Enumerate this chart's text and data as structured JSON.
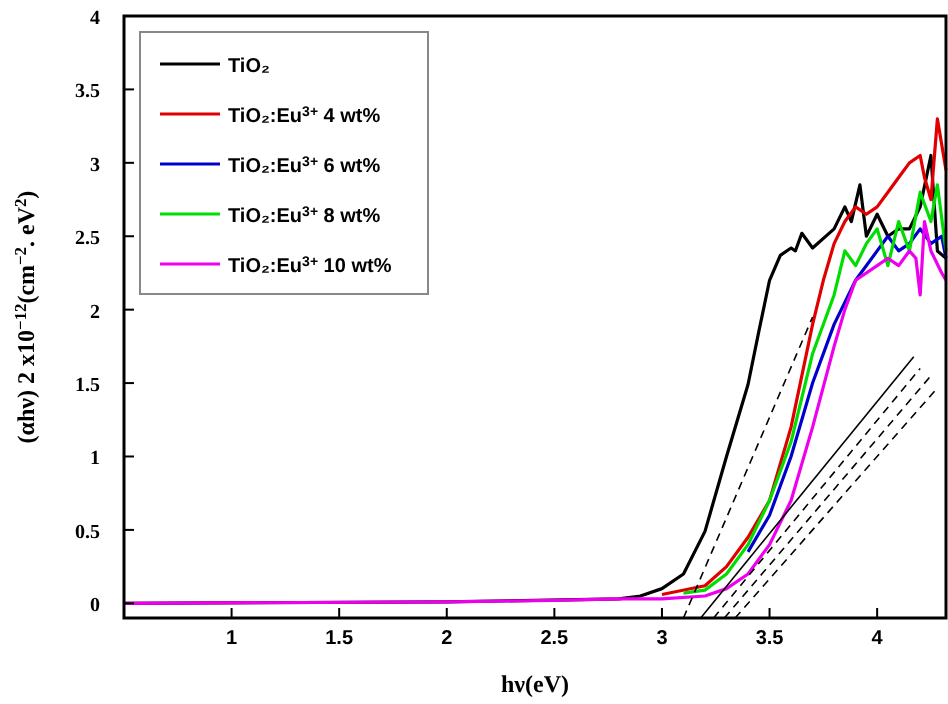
{
  "chart_data": {
    "type": "line",
    "xlabel": "hν(eV)",
    "ylabel": "(αhν) 2 x10$^{−12}$(cm$^{−2}$. eV$^{2}$)",
    "xlim": [
      0.5,
      4.32
    ],
    "ylim": [
      -0.1,
      4
    ],
    "xticks": [
      1,
      1.5,
      2,
      2.5,
      3,
      3.5,
      4
    ],
    "yticks": [
      0,
      0.5,
      1,
      1.5,
      2,
      2.5,
      3,
      3.5,
      4
    ],
    "legend": "top left",
    "grid": false,
    "line_style": "solid",
    "marker": "none",
    "series": [
      {
        "name": "TiO₂",
        "color": "#000000",
        "x": [
          0.5,
          2,
          2.8,
          2.9,
          3.0,
          3.1,
          3.2,
          3.3,
          3.4,
          3.45,
          3.5,
          3.55,
          3.6,
          3.62,
          3.65,
          3.7,
          3.8,
          3.85,
          3.88,
          3.92,
          3.95,
          4.0,
          4.05,
          4.1,
          4.15,
          4.2,
          4.25,
          4.28,
          4.32
        ],
        "values": [
          0,
          0.01,
          0.03,
          0.05,
          0.1,
          0.2,
          0.49,
          1.0,
          1.49,
          1.85,
          2.2,
          2.37,
          2.42,
          2.4,
          2.52,
          2.42,
          2.55,
          2.7,
          2.6,
          2.85,
          2.5,
          2.65,
          2.5,
          2.55,
          2.55,
          2.7,
          3.05,
          2.4,
          2.35
        ]
      },
      {
        "name": "TiO₂:Eu$^{3+}$ 4 wt%",
        "color": "#e00000",
        "x": [
          3.0,
          3.2,
          3.3,
          3.4,
          3.5,
          3.6,
          3.7,
          3.75,
          3.8,
          3.85,
          3.9,
          3.95,
          4.0,
          4.05,
          4.1,
          4.15,
          4.2,
          4.22,
          4.25,
          4.28,
          4.32
        ],
        "values": [
          0.06,
          0.12,
          0.25,
          0.45,
          0.7,
          1.2,
          1.9,
          2.2,
          2.45,
          2.6,
          2.7,
          2.65,
          2.7,
          2.8,
          2.9,
          3.0,
          3.05,
          2.9,
          2.75,
          3.3,
          2.95
        ]
      },
      {
        "name": "TiO₂:Eu$^{3+}$ 6 wt%",
        "color": "#0000cc",
        "x": [
          3.4,
          3.5,
          3.6,
          3.7,
          3.8,
          3.9,
          4.0,
          4.05,
          4.1,
          4.15,
          4.2,
          4.25,
          4.3,
          4.32
        ],
        "values": [
          0.35,
          0.6,
          1.0,
          1.5,
          1.9,
          2.2,
          2.4,
          2.5,
          2.4,
          2.45,
          2.55,
          2.45,
          2.5,
          2.35
        ]
      },
      {
        "name": "TiO₂:Eu$^{3+}$ 8 wt%",
        "color": "#00dd00",
        "x": [
          3.1,
          3.2,
          3.3,
          3.4,
          3.5,
          3.6,
          3.7,
          3.8,
          3.85,
          3.9,
          3.95,
          4.0,
          4.05,
          4.1,
          4.15,
          4.2,
          4.25,
          4.28,
          4.32
        ],
        "values": [
          0.07,
          0.09,
          0.2,
          0.4,
          0.7,
          1.1,
          1.7,
          2.1,
          2.4,
          2.3,
          2.45,
          2.55,
          2.3,
          2.6,
          2.4,
          2.8,
          2.6,
          2.85,
          2.4
        ]
      },
      {
        "name": "TiO₂:Eu$^{3+}$ 10 wt%",
        "color": "#ee00ee",
        "x": [
          0.5,
          2,
          2.5,
          2.8,
          3.0,
          3.2,
          3.3,
          3.4,
          3.5,
          3.6,
          3.7,
          3.8,
          3.85,
          3.9,
          4.0,
          4.05,
          4.1,
          4.15,
          4.18,
          4.2,
          4.22,
          4.25,
          4.3,
          4.32
        ],
        "values": [
          0,
          0.01,
          0.02,
          0.03,
          0.03,
          0.05,
          0.1,
          0.2,
          0.4,
          0.7,
          1.2,
          1.75,
          2.0,
          2.2,
          2.3,
          2.35,
          2.3,
          2.4,
          2.35,
          2.1,
          2.6,
          2.4,
          2.25,
          2.2
        ]
      },
      {
        "color": "#000000",
        "line_style": "dashed",
        "x": [
          3.1,
          3.7
        ],
        "values": [
          -0.1,
          1.95
        ]
      },
      {
        "color": "#000000",
        "line_style": "solid",
        "x": [
          3.18,
          4.17
        ],
        "values": [
          -0.1,
          1.68
        ]
      },
      {
        "color": "#000000",
        "line_style": "dashed",
        "x": [
          3.24,
          4.2
        ],
        "values": [
          -0.1,
          1.6
        ]
      },
      {
        "color": "#000000",
        "line_style": "dashed",
        "x": [
          3.29,
          4.25
        ],
        "values": [
          -0.1,
          1.55
        ]
      },
      {
        "color": "#000000",
        "line_style": "dashed",
        "x": [
          3.34,
          4.27
        ],
        "values": [
          -0.1,
          1.45
        ]
      }
    ]
  }
}
